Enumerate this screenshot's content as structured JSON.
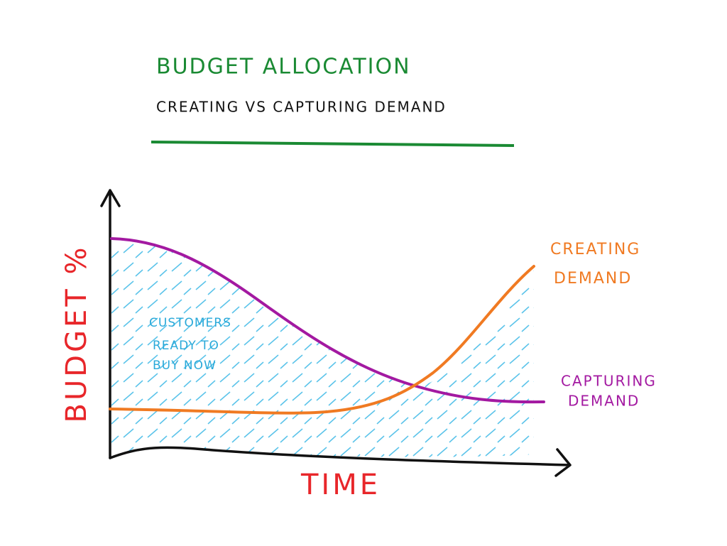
{
  "header": {
    "title": "BUDGET ALLOCATION",
    "subtitle": "CREATING VS CAPTURING DEMAND"
  },
  "axes": {
    "y_label": "BUDGET %",
    "x_label": "TIME"
  },
  "annotation": {
    "lines": [
      "CUSTOMERS",
      "READY TO",
      "BUY NOW"
    ]
  },
  "curves": [
    {
      "label_lines": [
        "CREATING",
        "DEMAND"
      ]
    },
    {
      "label_lines": [
        "CAPTURING",
        "DEMAND"
      ]
    }
  ]
}
